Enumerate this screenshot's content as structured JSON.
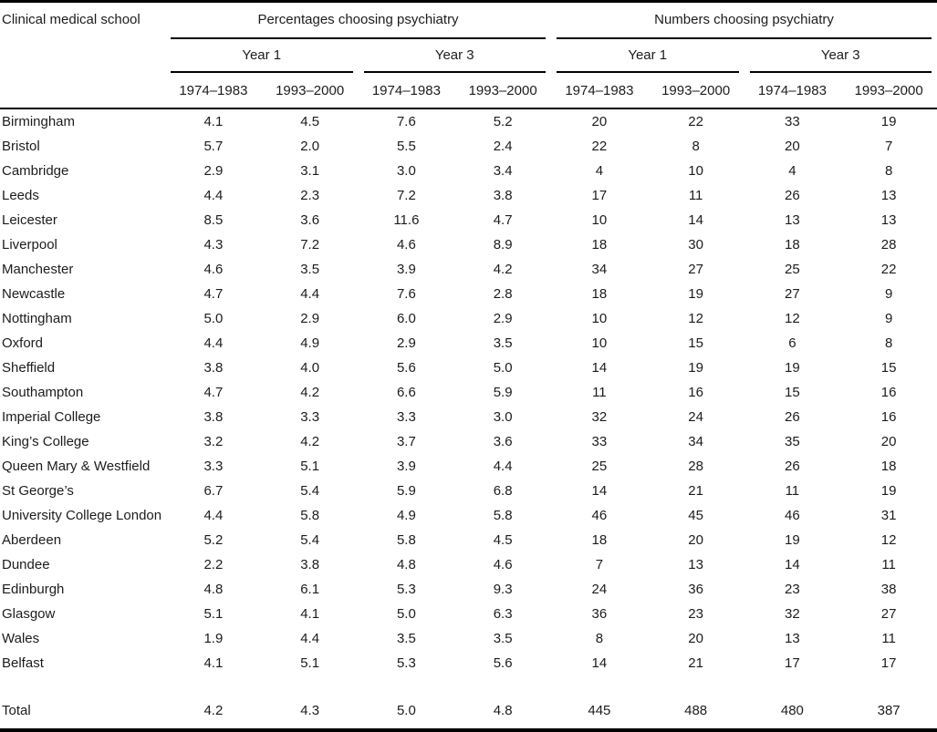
{
  "colors": {
    "background": "#ffffff",
    "text": "#1c1c1c",
    "rule": "#000000"
  },
  "table": {
    "school_header": "Clinical medical school",
    "groups": [
      {
        "label": "Percentages choosing psychiatry",
        "years": [
          "Year 1",
          "Year 3"
        ]
      },
      {
        "label": "Numbers choosing psychiatry",
        "years": [
          "Year 1",
          "Year 3"
        ]
      }
    ],
    "periods": [
      "1974–1983",
      "1993–2000",
      "1974–1983",
      "1993–2000",
      "1974–1983",
      "1993–2000",
      "1974–1983",
      "1993–2000"
    ],
    "rows": [
      {
        "school": "Birmingham",
        "values": [
          "4.1",
          "4.5",
          "7.6",
          "5.2",
          "20",
          "22",
          "33",
          "19"
        ]
      },
      {
        "school": "Bristol",
        "values": [
          "5.7",
          "2.0",
          "5.5",
          "2.4",
          "22",
          "8",
          "20",
          "7"
        ]
      },
      {
        "school": "Cambridge",
        "values": [
          "2.9",
          "3.1",
          "3.0",
          "3.4",
          "4",
          "10",
          "4",
          "8"
        ]
      },
      {
        "school": "Leeds",
        "values": [
          "4.4",
          "2.3",
          "7.2",
          "3.8",
          "17",
          "11",
          "26",
          "13"
        ]
      },
      {
        "school": "Leicester",
        "values": [
          "8.5",
          "3.6",
          "11.6",
          "4.7",
          "10",
          "14",
          "13",
          "13"
        ]
      },
      {
        "school": "Liverpool",
        "values": [
          "4.3",
          "7.2",
          "4.6",
          "8.9",
          "18",
          "30",
          "18",
          "28"
        ]
      },
      {
        "school": "Manchester",
        "values": [
          "4.6",
          "3.5",
          "3.9",
          "4.2",
          "34",
          "27",
          "25",
          "22"
        ]
      },
      {
        "school": "Newcastle",
        "values": [
          "4.7",
          "4.4",
          "7.6",
          "2.8",
          "18",
          "19",
          "27",
          "9"
        ]
      },
      {
        "school": "Nottingham",
        "values": [
          "5.0",
          "2.9",
          "6.0",
          "2.9",
          "10",
          "12",
          "12",
          "9"
        ]
      },
      {
        "school": "Oxford",
        "values": [
          "4.4",
          "4.9",
          "2.9",
          "3.5",
          "10",
          "15",
          "6",
          "8"
        ]
      },
      {
        "school": "Sheffield",
        "values": [
          "3.8",
          "4.0",
          "5.6",
          "5.0",
          "14",
          "19",
          "19",
          "15"
        ]
      },
      {
        "school": "Southampton",
        "values": [
          "4.7",
          "4.2",
          "6.6",
          "5.9",
          "11",
          "16",
          "15",
          "16"
        ]
      },
      {
        "school": "Imperial College",
        "values": [
          "3.8",
          "3.3",
          "3.3",
          "3.0",
          "32",
          "24",
          "26",
          "16"
        ]
      },
      {
        "school": "King’s College",
        "values": [
          "3.2",
          "4.2",
          "3.7",
          "3.6",
          "33",
          "34",
          "35",
          "20"
        ]
      },
      {
        "school": "Queen Mary & Westfield",
        "values": [
          "3.3",
          "5.1",
          "3.9",
          "4.4",
          "25",
          "28",
          "26",
          "18"
        ]
      },
      {
        "school": "St George’s",
        "values": [
          "6.7",
          "5.4",
          "5.9",
          "6.8",
          "14",
          "21",
          "11",
          "19"
        ]
      },
      {
        "school": "University College London",
        "values": [
          "4.4",
          "5.8",
          "4.9",
          "5.8",
          "46",
          "45",
          "46",
          "31"
        ]
      },
      {
        "school": "Aberdeen",
        "values": [
          "5.2",
          "5.4",
          "5.8",
          "4.5",
          "18",
          "20",
          "19",
          "12"
        ]
      },
      {
        "school": "Dundee",
        "values": [
          "2.2",
          "3.8",
          "4.8",
          "4.6",
          "7",
          "13",
          "14",
          "11"
        ]
      },
      {
        "school": "Edinburgh",
        "values": [
          "4.8",
          "6.1",
          "5.3",
          "9.3",
          "24",
          "36",
          "23",
          "38"
        ]
      },
      {
        "school": "Glasgow",
        "values": [
          "5.1",
          "4.1",
          "5.0",
          "6.3",
          "36",
          "23",
          "32",
          "27"
        ]
      },
      {
        "school": "Wales",
        "values": [
          "1.9",
          "4.4",
          "3.5",
          "3.5",
          "8",
          "20",
          "13",
          "11"
        ]
      },
      {
        "school": "Belfast",
        "values": [
          "4.1",
          "5.1",
          "5.3",
          "5.6",
          "14",
          "21",
          "17",
          "17"
        ]
      }
    ],
    "total_row": {
      "school": "Total",
      "values": [
        "4.2",
        "4.3",
        "5.0",
        "4.8",
        "445",
        "488",
        "480",
        "387"
      ]
    }
  }
}
